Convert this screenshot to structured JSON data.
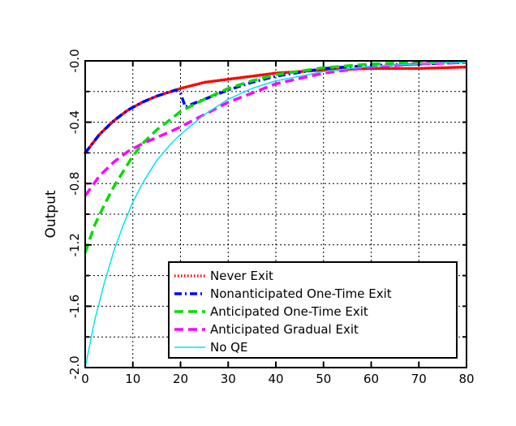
{
  "chart_data": {
    "type": "line",
    "title": "",
    "xlabel": "",
    "ylabel": "Output",
    "xlim": [
      0,
      80
    ],
    "ylim": [
      -2.0,
      0.0
    ],
    "grid": true,
    "legend_position": "bottom-right",
    "x_ticks": [
      0,
      10,
      20,
      30,
      40,
      50,
      60,
      70,
      80
    ],
    "x_tick_labels": [
      "0",
      "10",
      "20",
      "30",
      "40",
      "50",
      "60",
      "70",
      "80"
    ],
    "y_ticks": [
      -2.0,
      -1.6,
      -1.2,
      -0.8,
      -0.4,
      0.0
    ],
    "y_tick_labels": [
      "-2.0",
      "-1.6",
      "-1.2",
      "-0.8",
      "-0.4",
      "-0.0"
    ],
    "y_grid": [
      -1.8,
      -1.6,
      -1.4,
      -1.2,
      -1.0,
      -0.8,
      -0.6,
      -0.4,
      -0.2
    ],
    "series": [
      {
        "name": "Never Exit",
        "color": "#ff0000",
        "style": "dotted",
        "x": [
          0,
          3,
          6,
          9,
          12,
          15,
          18,
          19,
          20,
          25,
          30,
          40,
          50,
          60,
          70,
          80
        ],
        "y": [
          -0.6,
          -0.48,
          -0.39,
          -0.32,
          -0.27,
          -0.23,
          -0.2,
          -0.19,
          -0.18,
          -0.14,
          -0.12,
          -0.08,
          -0.06,
          -0.05,
          -0.05,
          -0.04
        ]
      },
      {
        "name": "Nonanticipated One-Time Exit",
        "color": "#0000ff",
        "style": "dashdot",
        "x": [
          0,
          3,
          6,
          9,
          12,
          15,
          18,
          19,
          20,
          21,
          25,
          30,
          35,
          40,
          50,
          60,
          70,
          80
        ],
        "y": [
          -0.6,
          -0.48,
          -0.39,
          -0.32,
          -0.27,
          -0.23,
          -0.2,
          -0.19,
          -0.21,
          -0.3,
          -0.25,
          -0.19,
          -0.14,
          -0.1,
          -0.05,
          -0.03,
          -0.02,
          -0.01
        ]
      },
      {
        "name": "Anticipated One-Time Exit",
        "color": "#00dd00",
        "style": "dashed",
        "x": [
          0,
          2,
          4,
          6,
          8,
          10,
          12,
          15,
          18,
          20,
          25,
          30,
          35,
          40,
          50,
          60,
          70,
          80
        ],
        "y": [
          -1.25,
          -1.07,
          -0.94,
          -0.82,
          -0.72,
          -0.62,
          -0.54,
          -0.45,
          -0.38,
          -0.33,
          -0.25,
          -0.18,
          -0.13,
          -0.09,
          -0.045,
          -0.02,
          -0.01,
          -0.005
        ]
      },
      {
        "name": "Anticipated Gradual Exit",
        "color": "#ff00ff",
        "style": "dashed",
        "x": [
          0,
          3,
          6,
          9,
          12,
          15,
          18,
          20,
          25,
          30,
          35,
          40,
          50,
          60,
          70,
          80
        ],
        "y": [
          -0.88,
          -0.75,
          -0.66,
          -0.59,
          -0.54,
          -0.5,
          -0.46,
          -0.43,
          -0.35,
          -0.27,
          -0.21,
          -0.15,
          -0.08,
          -0.04,
          -0.02,
          -0.01
        ]
      },
      {
        "name": "No QE",
        "color": "#00e5ee",
        "style": "solid",
        "x": [
          0,
          2,
          4,
          6,
          8,
          10,
          12,
          15,
          18,
          20,
          25,
          30,
          35,
          40,
          50,
          60,
          70,
          80
        ],
        "y": [
          -2.0,
          -1.69,
          -1.45,
          -1.24,
          -1.07,
          -0.92,
          -0.8,
          -0.65,
          -0.54,
          -0.48,
          -0.35,
          -0.25,
          -0.18,
          -0.13,
          -0.07,
          -0.035,
          -0.02,
          -0.01
        ]
      }
    ]
  }
}
